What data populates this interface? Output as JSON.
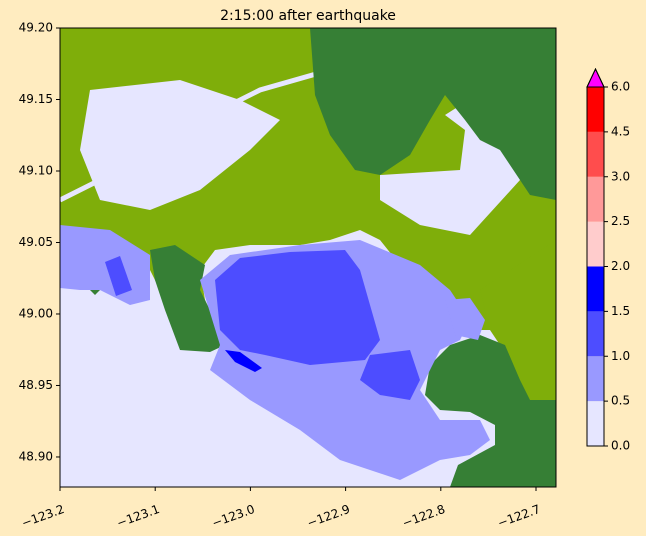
{
  "chart_data": {
    "type": "map",
    "title": "2:15:00 after earthquake",
    "xlim": [
      -123.2,
      -122.679
    ],
    "ylim": [
      48.879,
      49.2
    ],
    "xticks": [
      {
        "value": -123.2,
        "label": "−123.2"
      },
      {
        "value": -123.1,
        "label": "−123.1"
      },
      {
        "value": -123.0,
        "label": "−123.0"
      },
      {
        "value": -122.9,
        "label": "−122.9"
      },
      {
        "value": -122.8,
        "label": "−122.8"
      },
      {
        "value": -122.7,
        "label": "−122.7"
      }
    ],
    "yticks": [
      {
        "value": 48.9,
        "label": "48.90"
      },
      48.95,
      {
        "value": 49.0,
        "label": "49.00"
      },
      49.05,
      {
        "value": 49.1,
        "label": "49.10"
      },
      49.15,
      {
        "value": 49.2,
        "label": "49.20"
      }
    ],
    "colorbar": {
      "bounds": [
        {
          "value": 0,
          "label": "0.0"
        },
        0.5,
        {
          "value": 1,
          "label": "1.0"
        },
        1.5,
        {
          "value": 2,
          "label": "2.0"
        },
        2.5,
        {
          "value": 3,
          "label": "3.0"
        },
        4.5,
        {
          "value": 6,
          "label": "6.0"
        }
      ],
      "colors": [
        "#e6e6ff",
        "#9999ff",
        "#4d4dff",
        "#0000ff",
        "#ffcccc",
        "#ff9999",
        "#ff4d4d",
        "#ff0000"
      ],
      "extend_color": "#ff00ff"
    }
  }
}
